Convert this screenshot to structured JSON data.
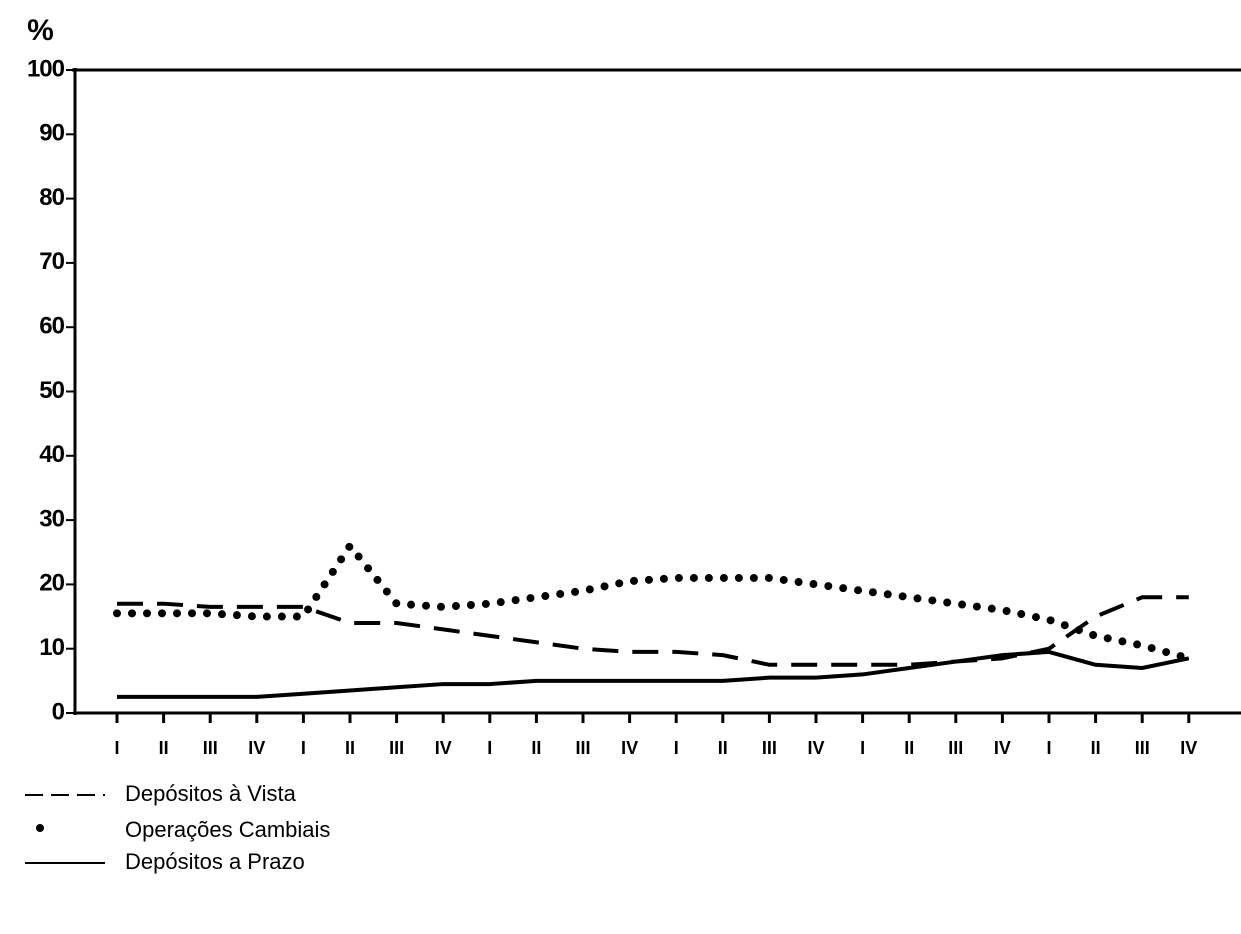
{
  "chart_data": {
    "type": "line",
    "y_label": "%",
    "categories": [
      "I",
      "II",
      "III",
      "IV",
      "I",
      "II",
      "III",
      "IV",
      "I",
      "II",
      "III",
      "IV",
      "I",
      "II",
      "III",
      "IV",
      "I",
      "II",
      "III",
      "IV",
      "I",
      "II",
      "III",
      "IV"
    ],
    "series": [
      {
        "name": "Operações Cambiais",
        "color": "#000000",
        "style": "dotted",
        "values": [
          15.5,
          15.5,
          15.5,
          15,
          15,
          26,
          17,
          16.5,
          17,
          18,
          19,
          20.5,
          21,
          21,
          21,
          20,
          19,
          18,
          17,
          16,
          14.5,
          12,
          10.5,
          8.5
        ]
      },
      {
        "name": "Depósitos à Vista",
        "color": "#000000",
        "style": "dashed",
        "values": [
          17,
          17,
          16.5,
          16.5,
          16.5,
          14,
          14,
          13,
          12,
          11,
          10,
          9.5,
          9.5,
          9,
          7.5,
          7.5,
          7.5,
          7.5,
          8,
          8.5,
          10,
          15,
          18,
          18
        ]
      },
      {
        "name": "Depósitos a Prazo",
        "color": "#000000",
        "style": "solid",
        "values": [
          2.5,
          2.5,
          2.5,
          2.5,
          3,
          3.5,
          4,
          4.5,
          4.5,
          5,
          5,
          5,
          5,
          5,
          5.5,
          5.5,
          6,
          7,
          8,
          9,
          9.5,
          7.5,
          7,
          8.5
        ]
      }
    ],
    "ylim": [
      0,
      100
    ],
    "yticks": [
      0,
      10,
      20,
      30,
      40,
      50,
      60,
      70,
      80,
      90,
      100
    ],
    "grid": false
  }
}
